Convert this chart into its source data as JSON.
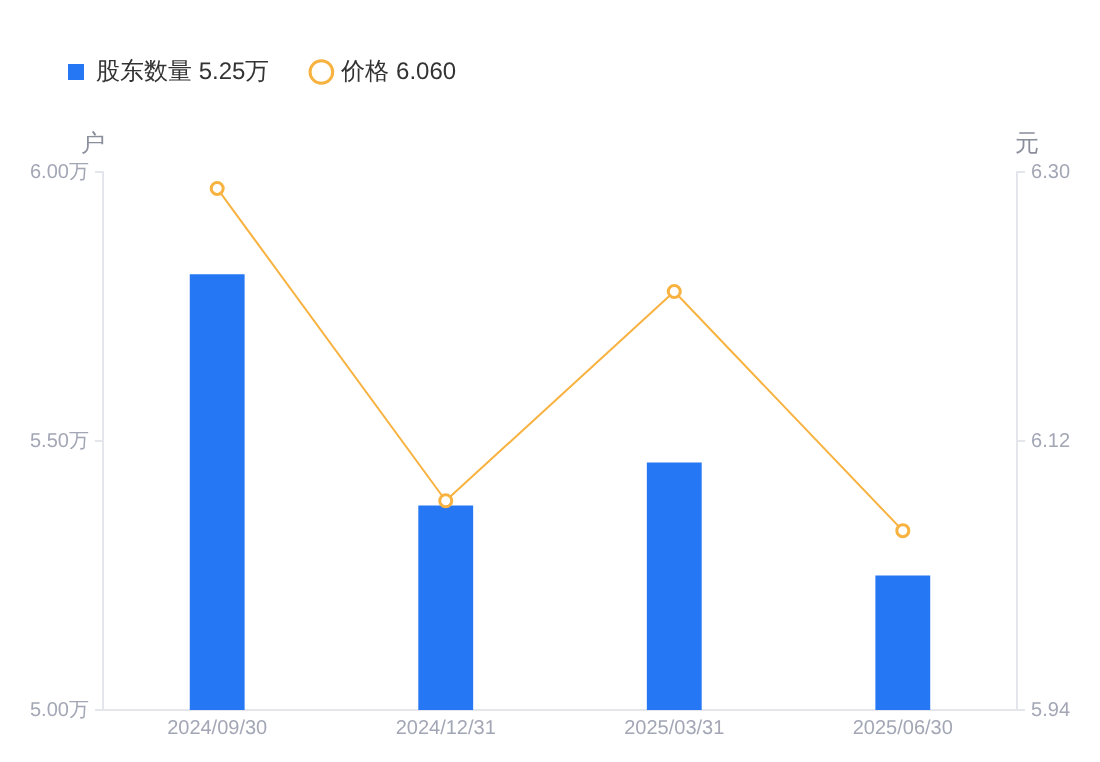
{
  "chart_data": {
    "type": "bar",
    "categories": [
      "2024/09/30",
      "2024/12/31",
      "2025/03/31",
      "2025/06/30"
    ],
    "series": [
      {
        "name": "股东数量 5.25万",
        "color": "#2577f4",
        "values": [
          5.81,
          5.38,
          5.46,
          5.25
        ]
      },
      {
        "name": "价格 6.060",
        "type": "line",
        "axis": "y2",
        "color": "#f8b240",
        "values": [
          6.289,
          6.08,
          6.22,
          6.06
        ]
      }
    ],
    "ylabel": "户",
    "y2label": "元",
    "ylim": [
      5,
      6
    ],
    "yticks": [
      {
        "value": 5,
        "label": "5.00万"
      },
      {
        "value": 5.5,
        "label": "5.50万"
      },
      {
        "value": 6,
        "label": "6.00万"
      }
    ],
    "y2lim": [
      5.94,
      6.3
    ],
    "y2ticks": [
      {
        "value": 5.94,
        "label": "5.94"
      },
      {
        "value": 6.12,
        "label": "6.12"
      },
      {
        "value": 6.3,
        "label": "6.30"
      }
    ],
    "grid": false,
    "legend": "top left",
    "marker": "circle",
    "line_style": "solid"
  }
}
